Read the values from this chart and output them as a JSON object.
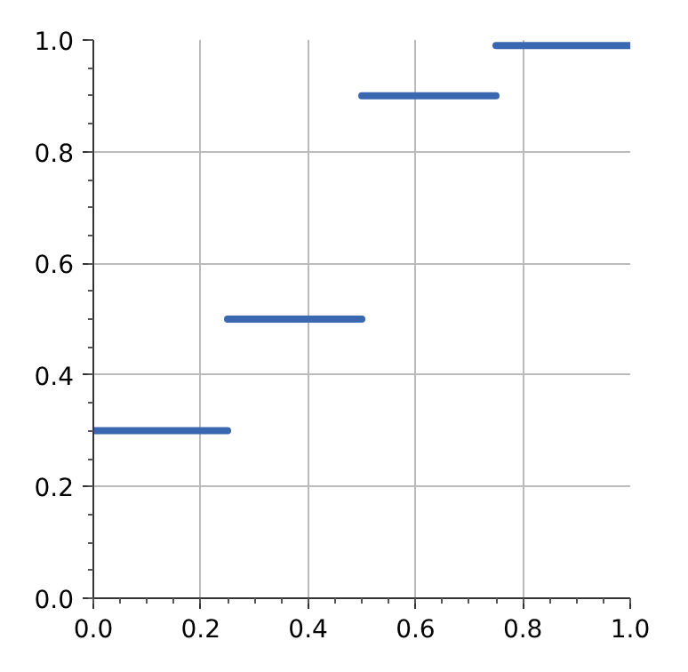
{
  "chart_data": {
    "type": "step",
    "x": [
      0,
      0.25,
      0.5,
      0.75,
      1.0
    ],
    "series": [
      {
        "color": "#3a68b0",
        "values": [
          0.3,
          0.3,
          0.5,
          0.9,
          0.99
        ]
      }
    ],
    "xlim": [
      0,
      1
    ],
    "ylim": [
      0,
      1
    ],
    "xticks": [
      {
        "value": 0,
        "label": "0.0"
      },
      0.2,
      0.4,
      0.6,
      0.8,
      {
        "value": 1,
        "label": "1.0"
      }
    ],
    "yticks": [
      {
        "value": 0,
        "label": "0.0"
      },
      0.2,
      0.4,
      0.6,
      0.8,
      {
        "value": 1,
        "label": "1.0"
      }
    ],
    "grid": true,
    "line_style": "solid",
    "marker": "none"
  }
}
